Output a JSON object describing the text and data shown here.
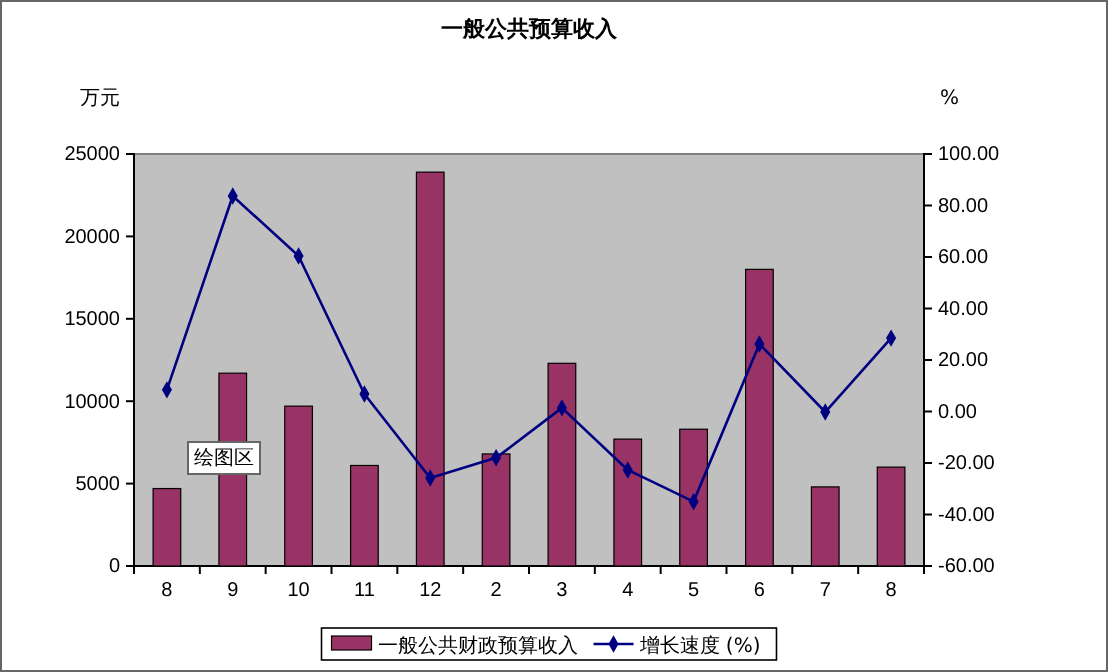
{
  "chart_data": {
    "type": "bar",
    "title": "一般公共预算收入",
    "ylabel": "万元",
    "y2label": "%",
    "categories": [
      "8",
      "9",
      "10",
      "11",
      "12",
      "2",
      "3",
      "4",
      "5",
      "6",
      "7",
      "8"
    ],
    "series": [
      {
        "name": "一般公共财政预算收入",
        "color": "#993366",
        "values": [
          4700,
          11700,
          9700,
          6100,
          23900,
          6800,
          12300,
          7700,
          8300,
          18000,
          4800,
          6000
        ]
      },
      {
        "name": "增长速度 (%)",
        "type": "line",
        "axis": "y2",
        "color": "#000080",
        "marker": "diamond",
        "values": [
          8.4,
          83.7,
          60.4,
          6.8,
          -25.8,
          -18,
          1.4,
          -22.7,
          -35,
          26.2,
          -0.2,
          28.5
        ]
      }
    ],
    "ylim": [
      0,
      25000
    ],
    "yticks": [
      0,
      5000,
      10000,
      15000,
      20000,
      25000
    ],
    "y2lim": [
      -60,
      100
    ],
    "y2ticks": [
      {
        "value": -60,
        "label": "-60.00"
      },
      {
        "value": -40,
        "label": "-40.00"
      },
      {
        "value": -20,
        "label": "-20.00"
      },
      {
        "value": 0,
        "label": "0.00"
      },
      {
        "value": 20,
        "label": "20.00"
      },
      {
        "value": 40,
        "label": "40.00"
      },
      {
        "value": 60,
        "label": "60.00"
      },
      {
        "value": 80,
        "label": "80.00"
      },
      {
        "value": 100,
        "label": "100.00"
      }
    ],
    "annotations": [
      "绘图区"
    ],
    "legend": "bottom"
  }
}
